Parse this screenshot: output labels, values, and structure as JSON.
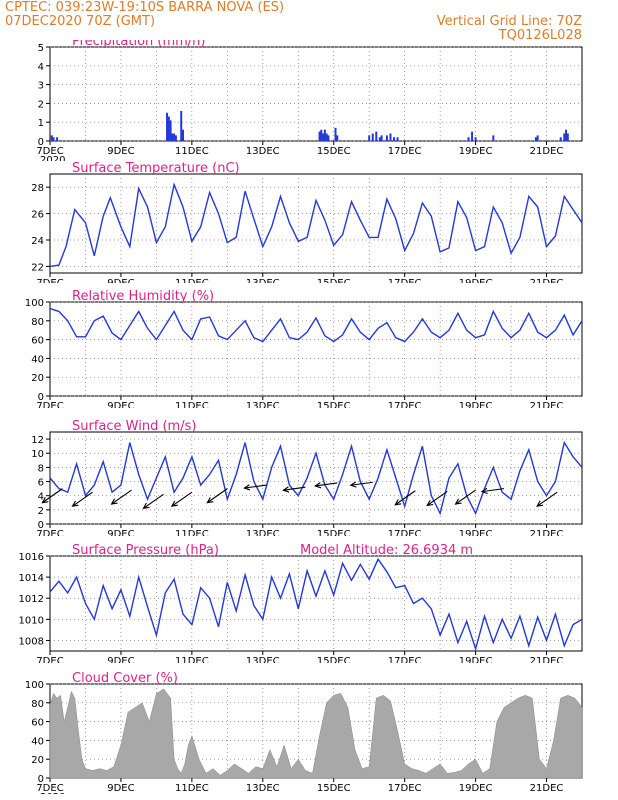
{
  "header": {
    "left_line1": "CPTEC:   039:23W-19:10S   BARRA NOVA (ES)",
    "left_line2": "07DEC2020 70Z (GMT)",
    "right_line1": "Vertical Grid Line: 70Z",
    "right_line2": "TQ0126L028"
  },
  "colors": {
    "title": "#e0218a",
    "header": "#e07b28",
    "line": "#2438d8",
    "cloud": "#a8a8a8"
  },
  "chart_data": [
    {
      "id": "precip",
      "type": "bar",
      "title": "Precipitation (mm/h)",
      "yticks": [
        "0",
        "1",
        "2",
        "3",
        "4",
        "5"
      ],
      "ylim": [
        0,
        5
      ],
      "xticks": [
        "7DEC",
        "9DEC",
        "11DEC",
        "13DEC",
        "15DEC",
        "17DEC",
        "19DEC",
        "21DEC"
      ],
      "xlim": [
        0,
        15
      ],
      "year_fragment": "2020",
      "x": [
        0.05,
        0.1,
        0.2,
        3.3,
        3.35,
        3.4,
        3.45,
        3.5,
        3.55,
        3.7,
        3.75,
        7.6,
        7.65,
        7.7,
        7.75,
        7.8,
        7.85,
        8.05,
        8.1,
        9.0,
        9.1,
        9.2,
        9.3,
        9.35,
        9.5,
        9.6,
        9.7,
        9.8,
        11.8,
        11.9,
        12.0,
        12.5,
        13.7,
        13.75,
        14.4,
        14.5,
        14.55,
        14.6
      ],
      "values": [
        0.3,
        0.2,
        0.2,
        1.5,
        1.3,
        1.1,
        0.4,
        0.4,
        0.3,
        1.6,
        0.6,
        0.5,
        0.6,
        0.4,
        0.6,
        0.4,
        0.3,
        0.7,
        0.3,
        0.3,
        0.4,
        0.5,
        0.2,
        0.3,
        0.3,
        0.4,
        0.2,
        0.2,
        0.2,
        0.5,
        0.2,
        0.3,
        0.2,
        0.3,
        0.2,
        0.4,
        0.6,
        0.4
      ]
    },
    {
      "id": "temp",
      "type": "line",
      "title": "Surface Temperature (nC)",
      "yticks": [
        "22",
        "24",
        "26",
        "28"
      ],
      "ylim": [
        21.5,
        29
      ],
      "xticks": [
        "7DEC",
        "9DEC",
        "11DEC",
        "13DEC",
        "15DEC",
        "17DEC",
        "19DEC",
        "21DEC"
      ],
      "xlim": [
        0,
        15
      ],
      "year_fragment": "2020",
      "x": [
        0,
        0.25,
        0.45,
        0.7,
        1.0,
        1.25,
        1.5,
        1.7,
        2.0,
        2.25,
        2.5,
        2.75,
        3.0,
        3.25,
        3.5,
        3.75,
        4.0,
        4.25,
        4.5,
        4.75,
        5.0,
        5.25,
        5.5,
        5.75,
        6.0,
        6.25,
        6.5,
        6.75,
        7.0,
        7.25,
        7.5,
        7.75,
        8.0,
        8.25,
        8.5,
        8.75,
        9.0,
        9.25,
        9.5,
        9.75,
        10.0,
        10.25,
        10.5,
        10.75,
        11.0,
        11.25,
        11.5,
        11.75,
        12.0,
        12.25,
        12.5,
        12.75,
        13.0,
        13.25,
        13.5,
        13.75,
        14.0,
        14.25,
        14.5,
        14.75,
        15.0
      ],
      "values": [
        22.0,
        22.1,
        23.5,
        26.3,
        25.3,
        22.8,
        25.8,
        27.2,
        25.0,
        23.5,
        27.9,
        26.5,
        23.8,
        25.0,
        28.2,
        26.5,
        23.9,
        25.0,
        27.6,
        26.0,
        23.8,
        24.2,
        27.7,
        25.6,
        23.5,
        25.0,
        27.3,
        25.3,
        23.9,
        24.2,
        27.0,
        25.5,
        23.6,
        24.4,
        26.9,
        25.5,
        24.2,
        24.2,
        27.1,
        25.6,
        23.2,
        24.5,
        26.8,
        25.8,
        23.1,
        23.4,
        26.9,
        25.7,
        23.2,
        23.5,
        26.5,
        25.3,
        23.0,
        24.2,
        27.3,
        26.5,
        23.5,
        24.3,
        27.3,
        26.3,
        25.3
      ]
    },
    {
      "id": "rh",
      "type": "line",
      "title": "Relative Humidity (%)",
      "yticks": [
        "0",
        "20",
        "40",
        "60",
        "80",
        "100"
      ],
      "ylim": [
        0,
        100
      ],
      "xticks": [
        "7DEC",
        "9DEC",
        "11DEC",
        "13DEC",
        "15DEC",
        "17DEC",
        "19DEC",
        "21DEC"
      ],
      "xlim": [
        0,
        15
      ],
      "year_fragment": "2020",
      "x": [
        0,
        0.25,
        0.5,
        0.75,
        1.0,
        1.25,
        1.5,
        1.75,
        2.0,
        2.25,
        2.5,
        2.75,
        3.0,
        3.25,
        3.5,
        3.75,
        4.0,
        4.25,
        4.5,
        4.75,
        5.0,
        5.25,
        5.5,
        5.75,
        6.0,
        6.25,
        6.5,
        6.75,
        7.0,
        7.25,
        7.5,
        7.75,
        8.0,
        8.25,
        8.5,
        8.75,
        9.0,
        9.25,
        9.5,
        9.75,
        10.0,
        10.25,
        10.5,
        10.75,
        11.0,
        11.25,
        11.5,
        11.75,
        12.0,
        12.25,
        12.5,
        12.75,
        13.0,
        13.25,
        13.5,
        13.75,
        14.0,
        14.25,
        14.5,
        14.75,
        15.0
      ],
      "values": [
        93,
        90,
        80,
        63,
        63,
        80,
        85,
        67,
        60,
        75,
        90,
        72,
        60,
        75,
        90,
        70,
        60,
        82,
        84,
        64,
        60,
        70,
        80,
        62,
        58,
        70,
        82,
        62,
        60,
        68,
        83,
        64,
        58,
        65,
        82,
        68,
        60,
        72,
        78,
        62,
        58,
        68,
        82,
        68,
        62,
        70,
        88,
        70,
        62,
        65,
        90,
        72,
        62,
        70,
        88,
        68,
        62,
        70,
        86,
        65,
        80
      ]
    },
    {
      "id": "wind",
      "type": "line",
      "title": "Surface Wind (m/s)",
      "yticks": [
        "0",
        "2",
        "4",
        "6",
        "8",
        "10",
        "12"
      ],
      "ylim": [
        0,
        13
      ],
      "xticks": [
        "7DEC",
        "9DEC",
        "11DEC",
        "13DEC",
        "15DEC",
        "17DEC",
        "19DEC",
        "21DEC"
      ],
      "xlim": [
        0,
        15
      ],
      "year_fragment": "2020",
      "x": [
        0,
        0.25,
        0.5,
        0.75,
        1.0,
        1.25,
        1.5,
        1.75,
        2.0,
        2.25,
        2.5,
        2.75,
        3.0,
        3.25,
        3.5,
        3.75,
        4.0,
        4.25,
        4.5,
        4.75,
        5.0,
        5.25,
        5.5,
        5.75,
        6.0,
        6.25,
        6.5,
        6.75,
        7.0,
        7.25,
        7.5,
        7.75,
        8.0,
        8.25,
        8.5,
        8.75,
        9.0,
        9.25,
        9.5,
        9.75,
        10.0,
        10.25,
        10.5,
        10.75,
        11.0,
        11.25,
        11.5,
        11.75,
        12.0,
        12.25,
        12.5,
        12.75,
        13.0,
        13.25,
        13.5,
        13.75,
        14.0,
        14.25,
        14.5,
        14.75,
        15.0
      ],
      "values": [
        6.5,
        5.0,
        4.5,
        8.5,
        4.0,
        5.5,
        8.8,
        4.5,
        5.5,
        11.5,
        7.0,
        3.5,
        6.5,
        9.5,
        4.5,
        6.5,
        9.5,
        5.5,
        7.0,
        9.0,
        3.5,
        7.0,
        11.5,
        6.0,
        3.5,
        8.0,
        11.0,
        5.5,
        4.0,
        6.5,
        10.0,
        5.5,
        3.5,
        7.0,
        11.0,
        6.0,
        3.5,
        6.5,
        10.5,
        6.5,
        2.5,
        7.0,
        11.0,
        4.0,
        1.5,
        6.5,
        8.5,
        4.0,
        1.5,
        5.0,
        8.0,
        4.5,
        3.5,
        7.5,
        10.5,
        6.0,
        4.0,
        6.0,
        11.5,
        9.5,
        8.0
      ],
      "arrows": [
        {
          "x": 0.35,
          "y": 5.0,
          "dir": "down-left"
        },
        {
          "x": 1.2,
          "y": 4.5,
          "dir": "down-left"
        },
        {
          "x": 2.3,
          "y": 4.8,
          "dir": "down-left"
        },
        {
          "x": 3.2,
          "y": 4.2,
          "dir": "down-left"
        },
        {
          "x": 4.0,
          "y": 4.5,
          "dir": "down-left"
        },
        {
          "x": 5.0,
          "y": 5.0,
          "dir": "down-left"
        },
        {
          "x": 6.1,
          "y": 5.5,
          "dir": "left"
        },
        {
          "x": 7.2,
          "y": 5.2,
          "dir": "left"
        },
        {
          "x": 8.1,
          "y": 5.8,
          "dir": "left"
        },
        {
          "x": 9.1,
          "y": 5.9,
          "dir": "left"
        },
        {
          "x": 10.3,
          "y": 4.7,
          "dir": "down-left"
        },
        {
          "x": 11.2,
          "y": 4.6,
          "dir": "down-left"
        },
        {
          "x": 12.0,
          "y": 4.8,
          "dir": "down-left"
        },
        {
          "x": 12.8,
          "y": 5.0,
          "dir": "left"
        },
        {
          "x": 14.3,
          "y": 4.5,
          "dir": "down-left"
        }
      ]
    },
    {
      "id": "pres",
      "type": "line",
      "title": "Surface Pressure (hPa)",
      "annotation": "Model Altitude: 26.6934 m",
      "yticks": [
        "1008",
        "1010",
        "1012",
        "1014",
        "1016"
      ],
      "ylim": [
        1007,
        1016
      ],
      "xticks": [
        "7DEC",
        "9DEC",
        "11DEC",
        "13DEC",
        "15DEC",
        "17DEC",
        "19DEC",
        "21DEC"
      ],
      "xlim": [
        0,
        15
      ],
      "year_fragment": "2020",
      "x": [
        0,
        0.25,
        0.5,
        0.75,
        1.0,
        1.25,
        1.5,
        1.75,
        2.0,
        2.25,
        2.5,
        2.75,
        3.0,
        3.25,
        3.5,
        3.75,
        4.0,
        4.25,
        4.5,
        4.75,
        5.0,
        5.25,
        5.5,
        5.75,
        6.0,
        6.25,
        6.5,
        6.75,
        7.0,
        7.25,
        7.5,
        7.75,
        8.0,
        8.25,
        8.5,
        8.75,
        9.0,
        9.25,
        9.5,
        9.75,
        10.0,
        10.25,
        10.5,
        10.75,
        11.0,
        11.25,
        11.5,
        11.75,
        12.0,
        12.25,
        12.5,
        12.75,
        13.0,
        13.25,
        13.5,
        13.75,
        14.0,
        14.25,
        14.5,
        14.75,
        15.0
      ],
      "values": [
        1012.6,
        1013.6,
        1012.5,
        1014.0,
        1011.5,
        1010.0,
        1013.2,
        1011.0,
        1012.8,
        1010.3,
        1014.0,
        1011.2,
        1008.5,
        1012.5,
        1013.8,
        1010.5,
        1009.5,
        1013.0,
        1012.0,
        1009.3,
        1013.5,
        1010.8,
        1014.2,
        1011.3,
        1010.0,
        1014.0,
        1012.0,
        1014.3,
        1011.0,
        1014.6,
        1012.2,
        1014.6,
        1012.3,
        1015.3,
        1013.7,
        1015.2,
        1013.8,
        1015.7,
        1014.5,
        1013.0,
        1013.2,
        1011.5,
        1012.0,
        1011.0,
        1008.5,
        1010.5,
        1007.8,
        1009.8,
        1007.2,
        1010.3,
        1007.8,
        1010.0,
        1008.2,
        1010.3,
        1007.5,
        1010.2,
        1008.0,
        1010.5,
        1007.5,
        1009.5,
        1010.0
      ]
    },
    {
      "id": "cloud",
      "type": "area",
      "title": "Cloud Cover (%)",
      "yticks": [
        "0",
        "20",
        "40",
        "60",
        "80",
        "100"
      ],
      "ylim": [
        0,
        100
      ],
      "xticks": [
        "7DEC",
        "9DEC",
        "11DEC",
        "13DEC",
        "15DEC",
        "17DEC",
        "19DEC",
        "21DEC"
      ],
      "xlim": [
        0,
        15
      ],
      "year_fragment": "2020",
      "x": [
        0,
        0.1,
        0.2,
        0.3,
        0.4,
        0.5,
        0.6,
        0.7,
        0.8,
        0.9,
        1.0,
        1.2,
        1.4,
        1.6,
        1.8,
        2.0,
        2.2,
        2.4,
        2.6,
        2.8,
        3.0,
        3.1,
        3.2,
        3.3,
        3.4,
        3.5,
        3.6,
        3.7,
        3.8,
        3.9,
        4.0,
        4.2,
        4.4,
        4.6,
        4.8,
        5.0,
        5.2,
        5.4,
        5.6,
        5.8,
        6.0,
        6.2,
        6.4,
        6.6,
        6.8,
        7.0,
        7.2,
        7.4,
        7.6,
        7.8,
        8.0,
        8.2,
        8.4,
        8.6,
        8.8,
        9.0,
        9.2,
        9.4,
        9.6,
        9.8,
        10.0,
        10.2,
        10.4,
        10.6,
        10.8,
        11.0,
        11.2,
        11.4,
        11.6,
        11.8,
        12.0,
        12.2,
        12.4,
        12.6,
        12.8,
        13.0,
        13.2,
        13.4,
        13.6,
        13.8,
        14.0,
        14.2,
        14.4,
        14.6,
        14.8,
        15.0
      ],
      "values": [
        78,
        90,
        85,
        88,
        60,
        75,
        92,
        85,
        50,
        20,
        10,
        8,
        10,
        8,
        12,
        35,
        70,
        75,
        80,
        60,
        90,
        92,
        95,
        90,
        85,
        20,
        10,
        5,
        15,
        35,
        45,
        20,
        5,
        10,
        3,
        8,
        15,
        10,
        5,
        12,
        10,
        30,
        12,
        35,
        10,
        20,
        8,
        5,
        45,
        80,
        88,
        90,
        75,
        30,
        10,
        12,
        85,
        88,
        82,
        50,
        15,
        10,
        8,
        5,
        10,
        15,
        5,
        6,
        8,
        15,
        20,
        5,
        10,
        60,
        75,
        80,
        85,
        88,
        85,
        20,
        10,
        40,
        85,
        88,
        85,
        75
      ]
    }
  ]
}
